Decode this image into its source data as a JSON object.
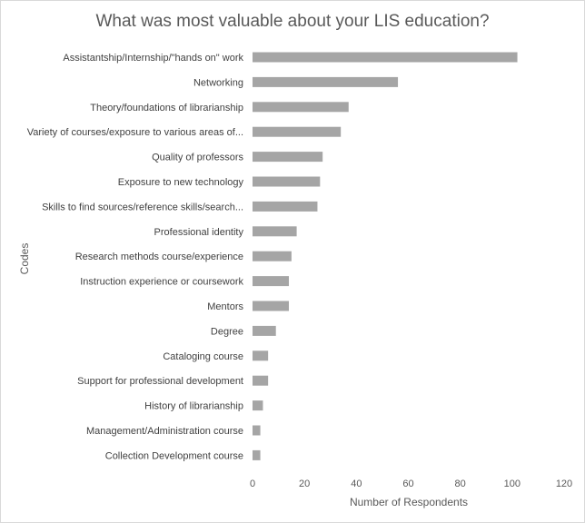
{
  "chart_data": {
    "type": "bar",
    "orientation": "horizontal",
    "title": "What was most valuable about your LIS education?",
    "xlabel": "Number  of Respondents",
    "ylabel": "Codes",
    "categories": [
      "Assistantship/Internship/\"hands on\" work",
      "Networking",
      "Theory/foundations of librarianship",
      "Variety of courses/exposure to various areas of...",
      "Quality of professors",
      "Exposure to new technology",
      "Skills to find sources/reference skills/search...",
      "Professional identity",
      "Research methods course/experience",
      "Instruction experience or coursework",
      "Mentors",
      "Degree",
      "Cataloging course",
      "Support for professional development",
      "History of librarianship",
      "Management/Administration course",
      "Collection Development course"
    ],
    "values": [
      102,
      56,
      37,
      34,
      27,
      26,
      25,
      17,
      15,
      14,
      14,
      9,
      6,
      6,
      4,
      3,
      3
    ],
    "xlim": [
      0,
      120
    ],
    "xticks": [
      0,
      20,
      40,
      60,
      80,
      100,
      120
    ],
    "grid": false,
    "legend": "none",
    "bar_color": "#a5a5a5"
  }
}
